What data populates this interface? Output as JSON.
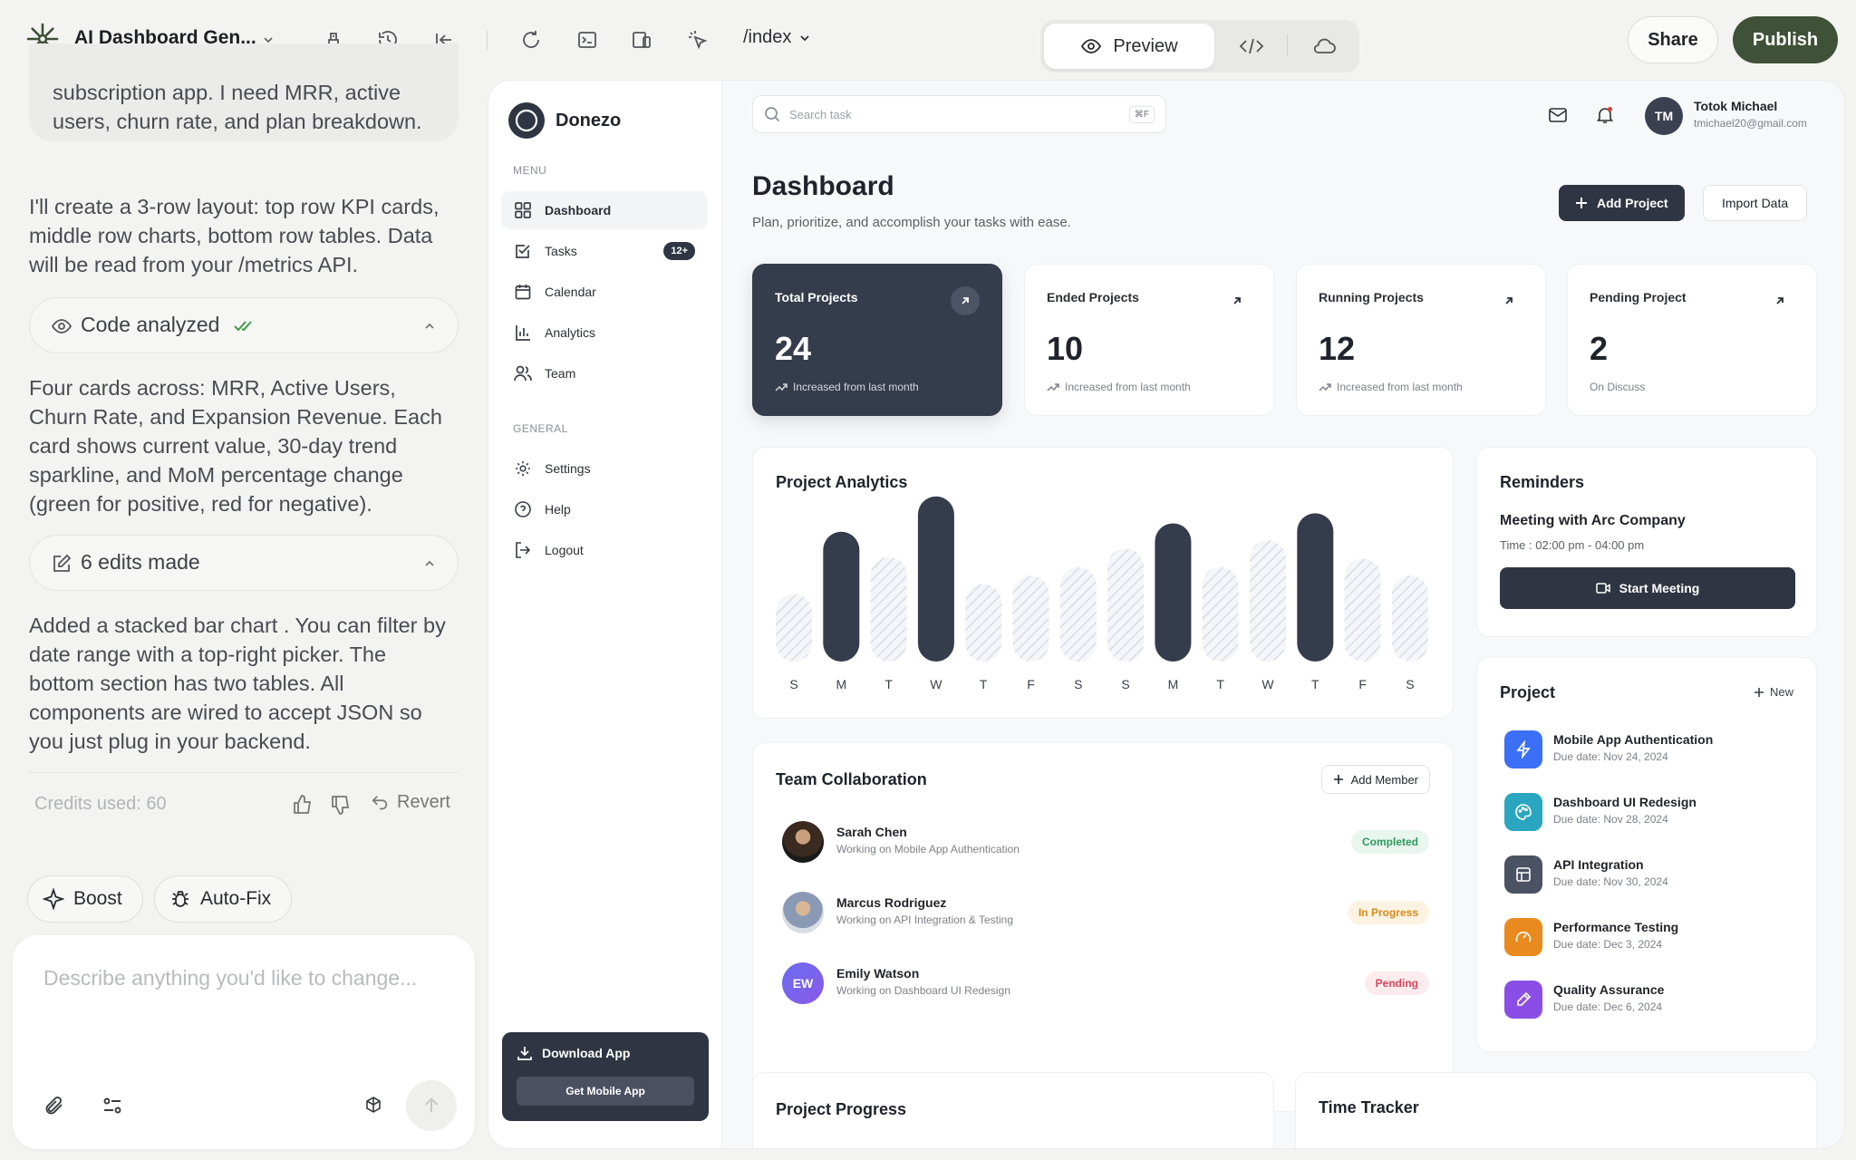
{
  "topbar": {
    "app_title": "AI Dashboard Gen...",
    "route": "/index",
    "preview_label": "Preview",
    "share_label": "Share",
    "publish_label": "Publish"
  },
  "chat": {
    "msg_user": "subscription app. I need MRR, active users, churn rate, and plan breakdown.",
    "msg_1": "I'll create a 3-row layout: top row KPI cards, middle row charts, bottom row tables. Data will be read from your /metrics API.",
    "code_analyzed": "Code analyzed",
    "msg_2": "Four cards across: MRR, Active Users, Churn Rate, and Expansion Revenue. Each card shows current value, 30-day trend sparkline, and MoM percentage change (green for positive, red for negative).",
    "edits_made": "6 edits made",
    "msg_3": "Added a stacked bar chart . You can filter by date range with a top-right picker. The bottom section has two tables. All components are wired to accept JSON so you just plug in your backend.",
    "credits": "Credits used: 60",
    "revert": "Revert",
    "boost": "Boost",
    "autofix": "Auto-Fix",
    "composer_placeholder": "Describe anything you'd like to change..."
  },
  "app": {
    "brand": "Donezo",
    "menu_label": "MENU",
    "general_label": "GENERAL",
    "nav": [
      {
        "label": "Dashboard",
        "icon": "grid-icon",
        "active": true
      },
      {
        "label": "Tasks",
        "icon": "checkbox-icon",
        "badge": "12+"
      },
      {
        "label": "Calendar",
        "icon": "calendar-icon"
      },
      {
        "label": "Analytics",
        "icon": "bar-chart-icon"
      },
      {
        "label": "Team",
        "icon": "users-icon"
      }
    ],
    "general": [
      {
        "label": "Settings",
        "icon": "gear-icon"
      },
      {
        "label": "Help",
        "icon": "help-icon"
      },
      {
        "label": "Logout",
        "icon": "logout-icon"
      }
    ],
    "download": {
      "title": "Download App",
      "button": "Get Mobile App"
    },
    "search_placeholder": "Search task",
    "search_shortcut": "⌘F",
    "user": {
      "initials": "TM",
      "name": "Totok Michael",
      "email": "tmichael20@gmail.com"
    },
    "page_title": "Dashboard",
    "page_subtitle": "Plan, prioritize, and accomplish your tasks with ease.",
    "add_project": "Add Project",
    "import_data": "Import Data",
    "kpis": [
      {
        "title": "Total Projects",
        "value": "24",
        "sub": "Increased from last month"
      },
      {
        "title": "Ended Projects",
        "value": "10",
        "sub": "Increased from last month"
      },
      {
        "title": "Running Projects",
        "value": "12",
        "sub": "Increased from last month"
      },
      {
        "title": "Pending Project",
        "value": "2",
        "sub": "On Discuss"
      }
    ],
    "analytics_title": "Project Analytics",
    "reminders": {
      "title": "Reminders",
      "meeting": "Meeting with Arc Company",
      "time": "Time : 02:00 pm - 04:00 pm",
      "button": "Start Meeting"
    },
    "team": {
      "title": "Team Collaboration",
      "add_member": "Add Member",
      "members": [
        {
          "name": "Sarah Chen",
          "role": "Working on Mobile App Authentication",
          "status": "Completed"
        },
        {
          "name": "Marcus Rodriguez",
          "role": "Working on API Integration & Testing",
          "status": "In Progress"
        },
        {
          "initials": "EW",
          "name": "Emily Watson",
          "role": "Working on Dashboard UI Redesign",
          "status": "Pending"
        }
      ]
    },
    "projects": {
      "title": "Project",
      "new_label": "New",
      "items": [
        {
          "name": "Mobile App Authentication",
          "due": "Due date: Nov 24, 2024",
          "color": "#3b6ff5",
          "icon": "bolt-icon"
        },
        {
          "name": "Dashboard UI Redesign",
          "due": "Due date: Nov 28, 2024",
          "color": "#2aa6c0",
          "icon": "palette-icon"
        },
        {
          "name": "API Integration",
          "due": "Due date: Nov 30, 2024",
          "color": "#4a5263",
          "icon": "layout-icon"
        },
        {
          "name": "Performance Testing",
          "due": "Due date: Dec 3, 2024",
          "color": "#e98a1e",
          "icon": "gauge-icon"
        },
        {
          "name": "Quality Assurance",
          "due": "Due date: Dec 6, 2024",
          "color": "#8a4ee6",
          "icon": "pen-icon"
        }
      ]
    },
    "progress_title": "Project Progress",
    "time_tracker_title": "Time Tracker"
  },
  "chart_data": {
    "type": "bar",
    "categories": [
      "S",
      "M",
      "T",
      "W",
      "T",
      "F",
      "S",
      "S",
      "M",
      "T",
      "W",
      "T",
      "F",
      "S"
    ],
    "values": [
      40,
      77,
      62,
      98,
      46,
      51,
      56,
      67,
      82,
      56,
      72,
      88,
      61,
      51
    ],
    "highlighted": [
      false,
      true,
      false,
      true,
      false,
      false,
      false,
      false,
      true,
      false,
      false,
      true,
      false,
      false
    ],
    "ylim": [
      0,
      100
    ]
  }
}
